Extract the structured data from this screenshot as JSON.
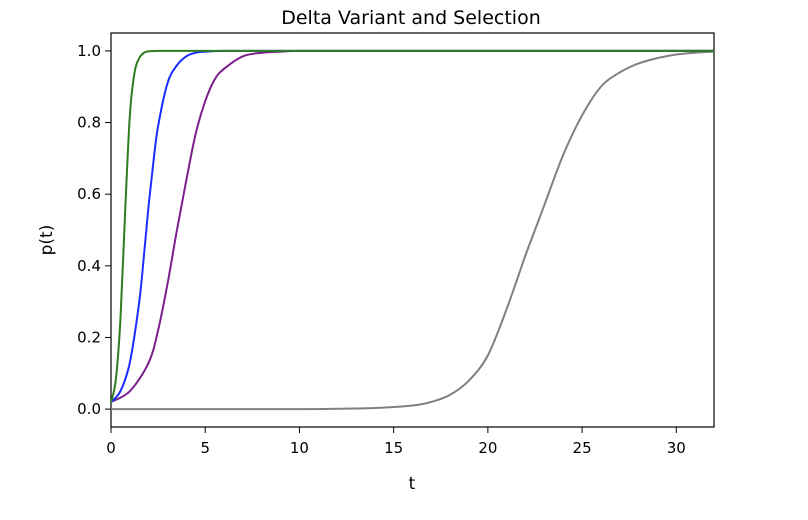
{
  "chart_data": {
    "type": "line",
    "title": "Delta Variant and Selection",
    "xlabel": "t",
    "ylabel": "p(t)",
    "xlim": [
      0,
      32
    ],
    "ylim": [
      -0.05,
      1.05
    ],
    "xticks": [
      0,
      5,
      10,
      15,
      20,
      25,
      30
    ],
    "yticks": [
      0.0,
      0.2,
      0.4,
      0.6,
      0.8,
      1.0
    ],
    "xtick_labels": [
      "0",
      "5",
      "10",
      "15",
      "20",
      "25",
      "30"
    ],
    "ytick_labels": [
      "0.0",
      "0.2",
      "0.4",
      "0.6",
      "0.8",
      "1.0"
    ],
    "grid": false,
    "legend": null,
    "series": [
      {
        "name": "green",
        "color": "#2e7d1f",
        "x": [
          0,
          0.25,
          0.5,
          0.75,
          1.0,
          1.25,
          1.5,
          1.75,
          2.0,
          2.5,
          3.0,
          4.0,
          6.0,
          10,
          15,
          20,
          25,
          32
        ],
        "values": [
          0.02,
          0.08,
          0.25,
          0.55,
          0.82,
          0.94,
          0.98,
          0.995,
          0.999,
          1.0,
          1.0,
          1.0,
          1.0,
          1.0,
          1.0,
          1.0,
          1.0,
          1.0
        ]
      },
      {
        "name": "blue",
        "color": "#1a2cff",
        "x": [
          0,
          0.5,
          1.0,
          1.5,
          1.75,
          2.0,
          2.25,
          2.5,
          3.0,
          3.5,
          4.0,
          4.5,
          5.0,
          6.0,
          8.0,
          10,
          15,
          20,
          25,
          32
        ],
        "values": [
          0.02,
          0.05,
          0.13,
          0.3,
          0.43,
          0.57,
          0.69,
          0.79,
          0.91,
          0.96,
          0.985,
          0.995,
          0.998,
          1.0,
          1.0,
          1.0,
          1.0,
          1.0,
          1.0,
          1.0
        ]
      },
      {
        "name": "purple",
        "color": "#7b1f8c",
        "x": [
          0,
          1.0,
          2.0,
          2.5,
          3.0,
          3.5,
          4.0,
          4.5,
          5.0,
          5.5,
          6.0,
          7.0,
          8.0,
          9.0,
          10,
          12,
          15,
          20,
          25,
          32
        ],
        "values": [
          0.02,
          0.05,
          0.13,
          0.22,
          0.35,
          0.5,
          0.64,
          0.77,
          0.86,
          0.92,
          0.95,
          0.985,
          0.995,
          0.998,
          1.0,
          1.0,
          1.0,
          1.0,
          1.0,
          1.0
        ]
      },
      {
        "name": "gray",
        "color": "#808080",
        "x": [
          0,
          5,
          10,
          12,
          14,
          16,
          17,
          18,
          19,
          20,
          21,
          22,
          22.5,
          23,
          24,
          25,
          26,
          27,
          28,
          29,
          30,
          31,
          32
        ],
        "values": [
          0.0,
          0.0,
          0.0,
          0.001,
          0.003,
          0.01,
          0.02,
          0.04,
          0.08,
          0.15,
          0.28,
          0.43,
          0.5,
          0.57,
          0.71,
          0.82,
          0.9,
          0.94,
          0.965,
          0.98,
          0.99,
          0.995,
          0.998
        ]
      }
    ]
  }
}
